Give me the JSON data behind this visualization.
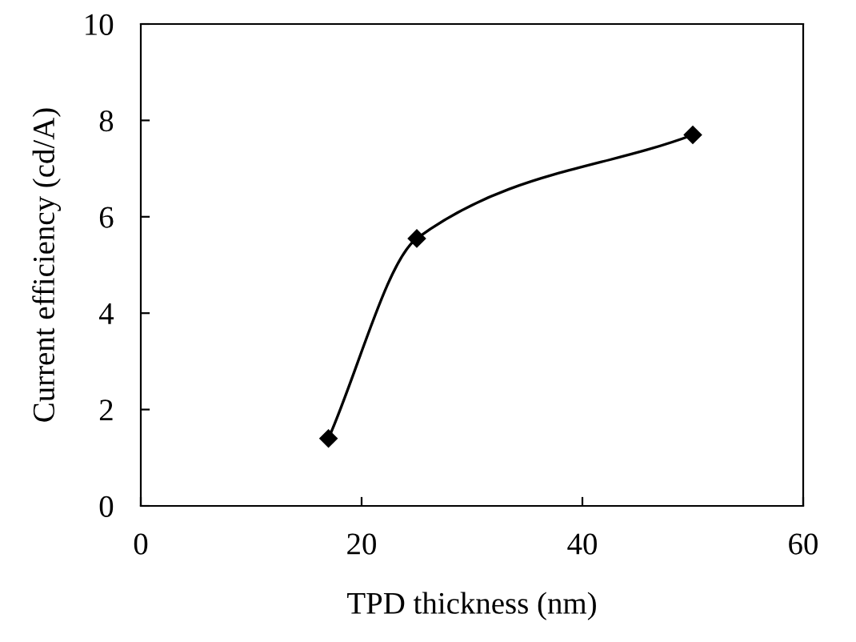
{
  "chart_data": {
    "type": "line",
    "xlabel": "TPD thickness (nm)",
    "ylabel": "Current efficiency (cd/A)",
    "x": [
      17,
      25,
      50
    ],
    "series": [
      {
        "color": "#000000",
        "values": [
          1.4,
          5.55,
          7.7
        ]
      }
    ],
    "xlim": [
      0,
      60
    ],
    "xticks": [
      0,
      20,
      40,
      60
    ],
    "ylim": [
      0,
      10
    ],
    "yticks": [
      0,
      2,
      4,
      6,
      8,
      10
    ],
    "marker": "diamond",
    "line_style": "solid",
    "grid": false
  }
}
